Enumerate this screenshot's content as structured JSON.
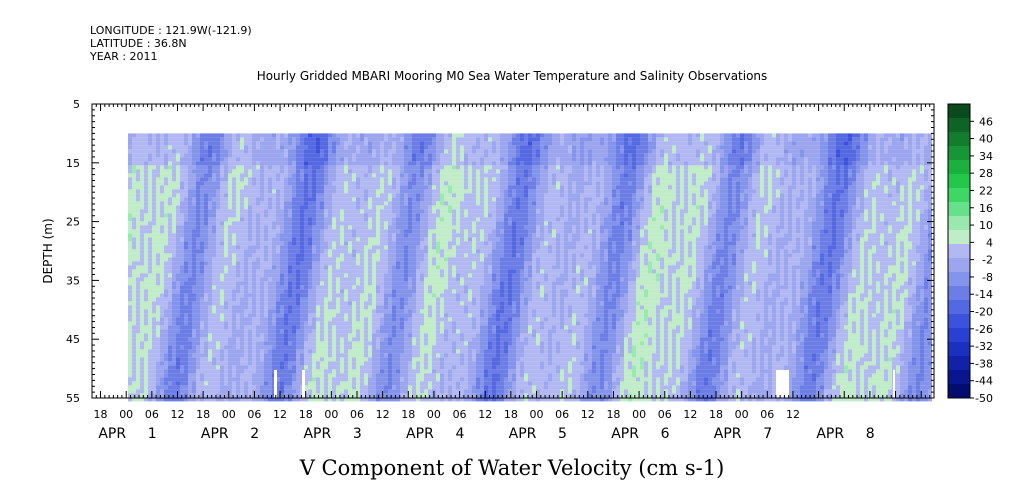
{
  "header": {
    "longitude": "LONGITUDE : 121.9W(-121.9)",
    "latitude": "LATITUDE : 36.8N",
    "year": "YEAR : 2011"
  },
  "chart_data": {
    "type": "heatmap",
    "title": "Hourly Gridded MBARI Mooring M0 Sea Water Temperature and Salinity Observations",
    "xlabel": "V Component of Water Velocity (cm s-1)",
    "ylabel": "DEPTH (m)",
    "y_ticks": [
      "5",
      "15",
      "25",
      "35",
      "45",
      "55"
    ],
    "ylim": [
      5,
      55
    ],
    "y_inverted": true,
    "data_depth_range": [
      10,
      55
    ],
    "x_hour_labels": [
      "18",
      "00",
      "06",
      "12",
      "18",
      "00",
      "06",
      "12",
      "18",
      "00",
      "06",
      "12",
      "18",
      "00",
      "06",
      "12",
      "18",
      "00",
      "06",
      "12",
      "18",
      "00",
      "06",
      "12",
      "18",
      "00",
      "06",
      "12"
    ],
    "x_date_labels": [
      {
        "month": "APR",
        "day": "1"
      },
      {
        "month": "APR",
        "day": "2"
      },
      {
        "month": "APR",
        "day": "3"
      },
      {
        "month": "APR",
        "day": "4"
      },
      {
        "month": "APR",
        "day": "5"
      },
      {
        "month": "APR",
        "day": "6"
      },
      {
        "month": "APR",
        "day": "7"
      },
      {
        "month": "APR",
        "day": "8"
      }
    ],
    "colorbar": {
      "labels": [
        "46",
        "40",
        "34",
        "28",
        "22",
        "16",
        "10",
        "4",
        "-2",
        "-8",
        "-14",
        "-20",
        "-26",
        "-32",
        "-38",
        "-44",
        "-50"
      ],
      "range": [
        -50,
        52
      ],
      "colors": [
        "#0a4a1c",
        "#0e6426",
        "#137c2f",
        "#179637",
        "#1bb03f",
        "#22c84a",
        "#3ed664",
        "#66e08a",
        "#98e8b0",
        "#c0ecc8",
        "#b2b8f2",
        "#9ca6ee",
        "#8494ea",
        "#6c7ee6",
        "#5468e2",
        "#3c52dc",
        "#2a40d2",
        "#1c30c0",
        "#1222a8",
        "#0a1690",
        "#050c70"
      ]
    },
    "grid": false
  }
}
